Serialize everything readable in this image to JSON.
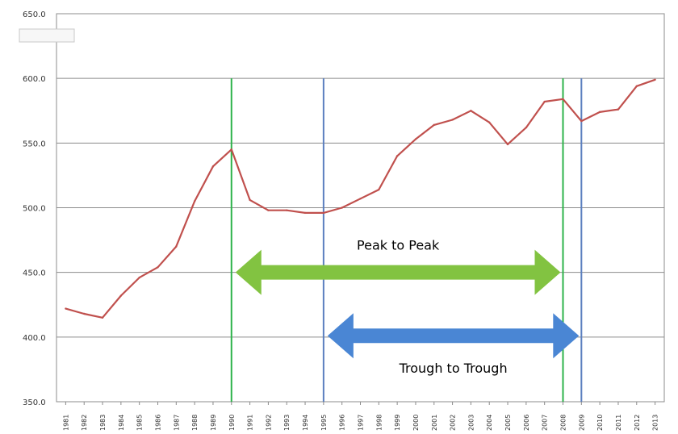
{
  "chart_data": {
    "type": "line",
    "title": "",
    "xlabel": "",
    "ylabel": "",
    "ylim": [
      350,
      650
    ],
    "grid": true,
    "y_ticks": [
      "350.0",
      "400.0",
      "450.0",
      "500.0",
      "550.0",
      "600.0",
      "650.0"
    ],
    "x": [
      "1981",
      "1982",
      "1983",
      "1984",
      "1985",
      "1986",
      "1987",
      "1988",
      "1989",
      "1990",
      "1991",
      "1992",
      "1993",
      "1994",
      "1995",
      "1996",
      "1997",
      "1998",
      "1999",
      "2000",
      "2001",
      "2002",
      "2003",
      "2004",
      "2005",
      "2006",
      "2007",
      "2008",
      "2009",
      "2010",
      "2011",
      "2012",
      "2013"
    ],
    "series": [
      {
        "color": "#c0504d",
        "values": [
          422,
          418,
          415,
          432,
          446,
          454,
          470,
          505,
          532,
          545,
          506,
          498,
          498,
          496,
          496,
          500,
          507,
          514,
          540,
          553,
          564,
          568,
          575,
          566,
          549,
          562,
          582,
          584,
          567,
          574,
          576,
          594,
          599
        ]
      }
    ],
    "vertical_markers": [
      {
        "x": "1990",
        "color": "#2db34a"
      },
      {
        "x": "1995",
        "color": "#5b7fbf"
      },
      {
        "x": "2008",
        "color": "#2db34a"
      },
      {
        "x": "2009",
        "color": "#5b7fbf"
      }
    ],
    "annotations": [
      {
        "text": "Peak to Peak",
        "from": "1990",
        "to": "2008",
        "y": 450,
        "color": "#82c341"
      },
      {
        "text": "Trough to Trough",
        "from": "1995",
        "to": "2009",
        "y": 401,
        "color": "#4a86d4"
      }
    ]
  }
}
